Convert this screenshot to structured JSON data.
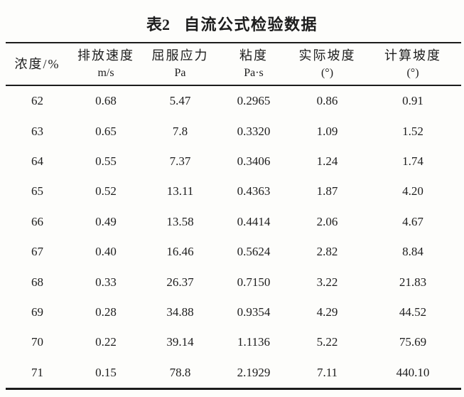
{
  "caption": {
    "label": "表2",
    "title": "自流公式检验数据"
  },
  "table": {
    "columns": [
      {
        "name": "浓度/%",
        "unit": ""
      },
      {
        "name": "排放速度",
        "unit": "m/s"
      },
      {
        "name": "屈服应力",
        "unit": "Pa"
      },
      {
        "name": "粘度",
        "unit": "Pa·s"
      },
      {
        "name": "实际坡度",
        "unit": "(°)"
      },
      {
        "name": "计算坡度",
        "unit": "(°)"
      }
    ],
    "rows": [
      [
        "62",
        "0.68",
        "5.47",
        "0.2965",
        "0.86",
        "0.91"
      ],
      [
        "63",
        "0.65",
        "7.8",
        "0.3320",
        "1.09",
        "1.52"
      ],
      [
        "64",
        "0.55",
        "7.37",
        "0.3406",
        "1.24",
        "1.74"
      ],
      [
        "65",
        "0.52",
        "13.11",
        "0.4363",
        "1.87",
        "4.20"
      ],
      [
        "66",
        "0.49",
        "13.58",
        "0.4414",
        "2.06",
        "4.67"
      ],
      [
        "67",
        "0.40",
        "16.46",
        "0.5624",
        "2.82",
        "8.84"
      ],
      [
        "68",
        "0.33",
        "26.37",
        "0.7150",
        "3.22",
        "21.83"
      ],
      [
        "69",
        "0.28",
        "34.88",
        "0.9354",
        "4.29",
        "44.52"
      ],
      [
        "70",
        "0.22",
        "39.14",
        "1.1136",
        "5.22",
        "75.69"
      ],
      [
        "71",
        "0.15",
        "78.8",
        "2.1929",
        "7.11",
        "440.10"
      ]
    ]
  },
  "colors": {
    "ink": "#1d1d1d",
    "paper": "#fdfdfb"
  }
}
